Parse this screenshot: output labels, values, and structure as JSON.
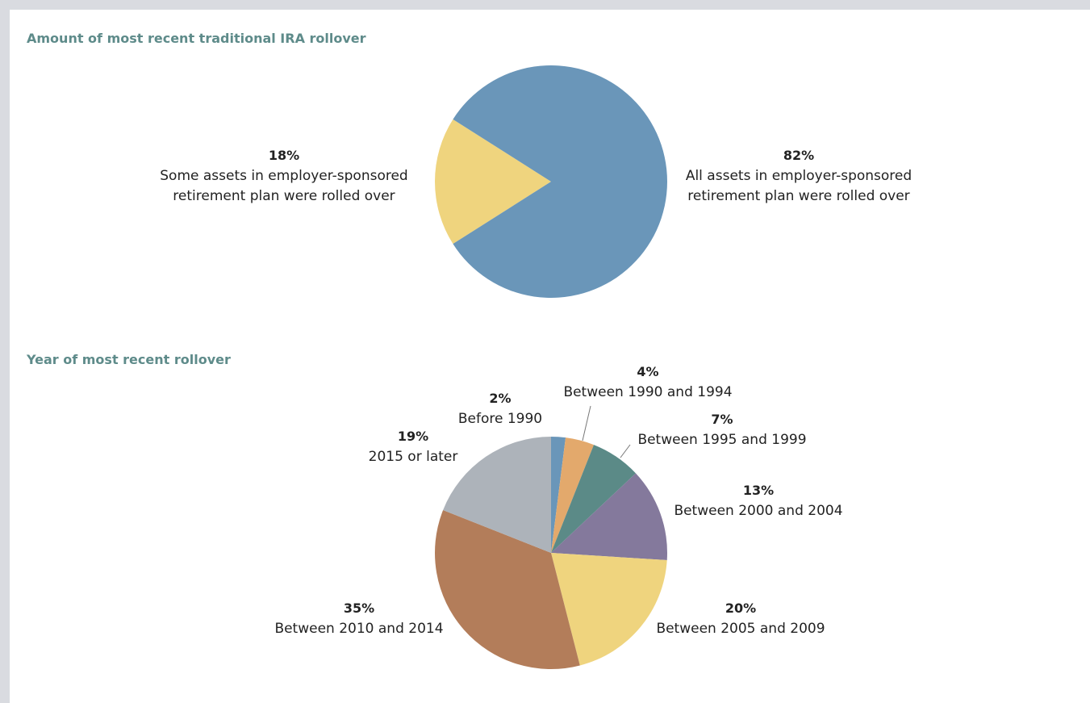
{
  "chart_data": [
    {
      "type": "pie",
      "title": "Amount of most recent traditional IRA rollover",
      "categories": [
        [
          "Some assets in employer-sponsored",
          "retirement plan were rolled over"
        ],
        [
          "All assets in employer-sponsored",
          "retirement plan were rolled over"
        ]
      ],
      "values": [
        18,
        82
      ],
      "value_labels": [
        "18%",
        "82%"
      ],
      "colors": [
        "#efd47e",
        "#6a96b9"
      ]
    },
    {
      "type": "pie",
      "title": "Year of most recent rollover",
      "categories": [
        [
          "Before 1990"
        ],
        [
          "Between 1990 and 1994"
        ],
        [
          "Between 1995 and 1999"
        ],
        [
          "Between 2000 and 2004"
        ],
        [
          "Between 2005 and 2009"
        ],
        [
          "Between 2010 and 2014"
        ],
        [
          "2015 or later"
        ]
      ],
      "values": [
        2,
        4,
        7,
        13,
        20,
        35,
        19
      ],
      "value_labels": [
        "2%",
        "4%",
        "7%",
        "13%",
        "20%",
        "35%",
        "19%"
      ],
      "colors": [
        "#6a96b9",
        "#e3a96c",
        "#5b8a87",
        "#84799c",
        "#efd47e",
        "#b37d5a",
        "#adb3ba"
      ]
    }
  ]
}
